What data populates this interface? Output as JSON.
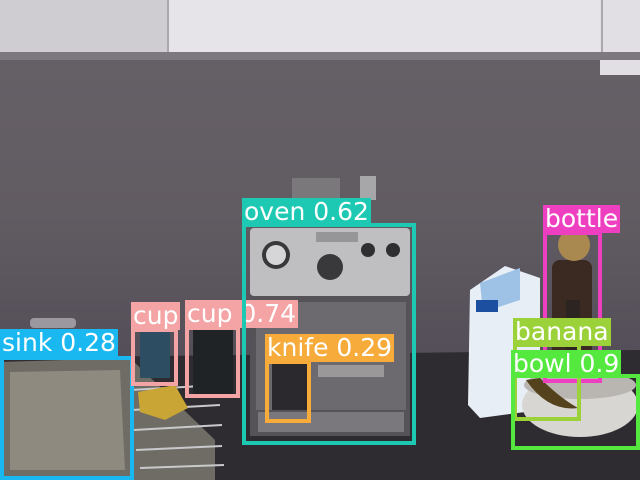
{
  "detections": [
    {
      "label": "sink 0.28",
      "color": "#1ab8f0"
    },
    {
      "label": "cup",
      "color": "#f4a4a4"
    },
    {
      "label": "cup 0.74",
      "color": "#f4a4a4"
    },
    {
      "label": "oven 0.62",
      "color": "#1ec9b3"
    },
    {
      "label": "knife 0.29",
      "color": "#f6ab3b"
    },
    {
      "label": "bottle",
      "color": "#ee3fc1"
    },
    {
      "label": "banana",
      "color": "#9bd23a"
    },
    {
      "label": "bowl 0.9",
      "color": "#55e83f"
    }
  ]
}
